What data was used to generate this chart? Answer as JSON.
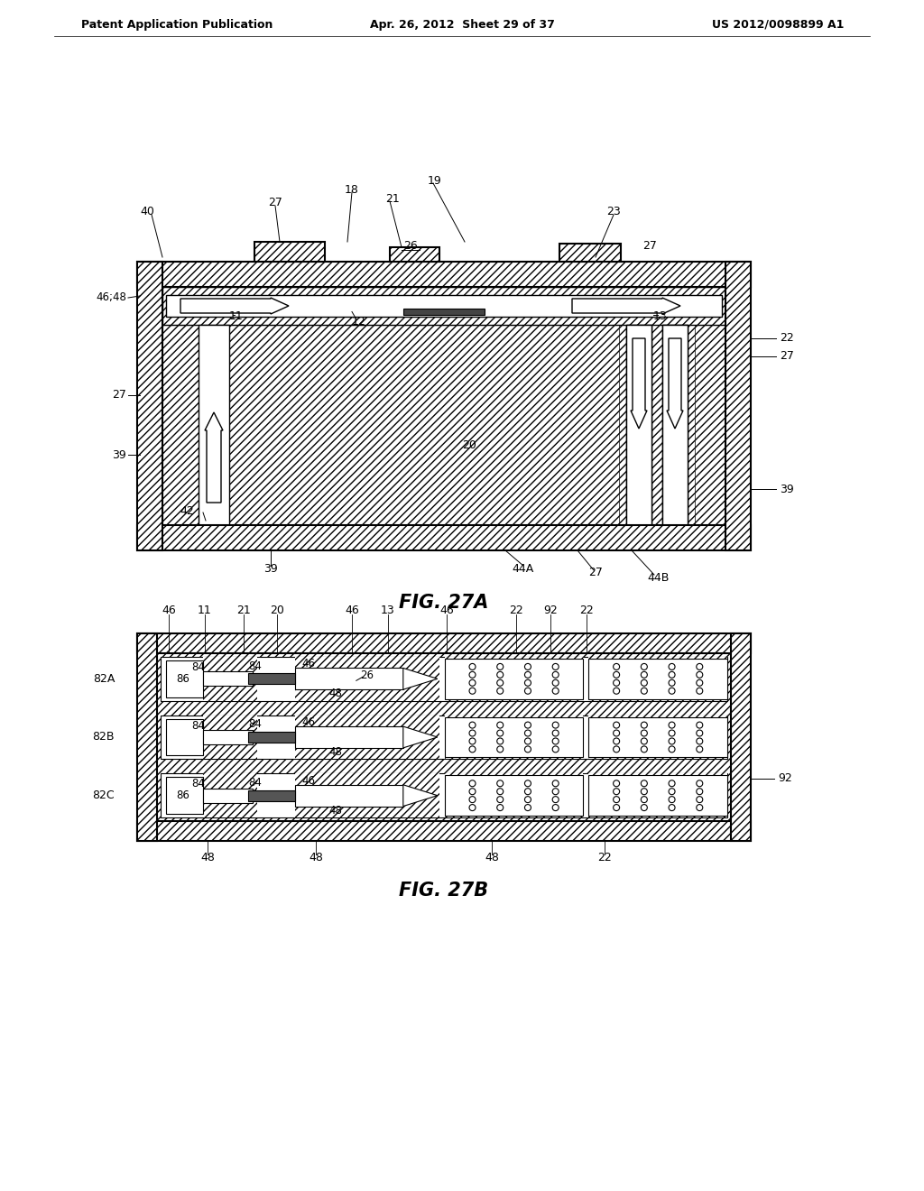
{
  "bg_color": "#ffffff",
  "header_left": "Patent Application Publication",
  "header_mid": "Apr. 26, 2012  Sheet 29 of 37",
  "header_right": "US 2012/0098899 A1",
  "fig_label_a": "FIG. 27A",
  "fig_label_b": "FIG. 27B"
}
